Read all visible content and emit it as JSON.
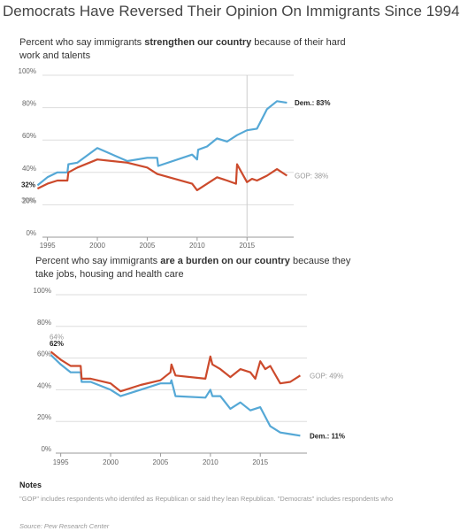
{
  "title": "Democrats Have Reversed Their Opinion On Immigrants Since 1994",
  "colors": {
    "dem": "#55a8d6",
    "gop": "#cc4a2c",
    "grid": "#dddddd",
    "axis": "#999999"
  },
  "panels": [
    {
      "subtitle_pre": "Percent who say immigrants ",
      "subtitle_bold": "strengthen our country",
      "subtitle_post": " because of their hard work and talents"
    },
    {
      "subtitle_pre": "Percent who say immigrants ",
      "subtitle_bold": "are a burden on our country",
      "subtitle_post": " because they take jobs, housing and health care"
    }
  ],
  "notes": {
    "heading": "Notes",
    "text": "\"GOP\" includes respondents who identifed as Republican or said they lean Republican. \"Democrats\" includes respondents who"
  },
  "source": "Source: Pew Research Center",
  "chart_data": [
    {
      "type": "line",
      "ylim": [
        0,
        100
      ],
      "yticks": [
        "0%",
        "20%",
        "40%",
        "60%",
        "80%",
        "100%"
      ],
      "xlim": [
        1994.5,
        2019.5
      ],
      "xticks": [
        "1995",
        "2000",
        "2005",
        "2010",
        "2015"
      ],
      "ref_line_x": 2015,
      "series": [
        {
          "key": "dem",
          "x": [
            1994,
            1995,
            1996,
            1997,
            1997.1,
            1998,
            2000,
            2003,
            2005,
            2006,
            2006.1,
            2009.5,
            2010,
            2010.1,
            2011,
            2012,
            2013,
            2014,
            2015,
            2016,
            2017,
            2018,
            2019
          ],
          "y": [
            32,
            37,
            40,
            40,
            45,
            46,
            55,
            47,
            49,
            49,
            44,
            51,
            48,
            54,
            56,
            61,
            59,
            63,
            66,
            67,
            79,
            84,
            83
          ],
          "start_label": "32%",
          "end_label_name": "Dem.: ",
          "end_label_value": "83%"
        },
        {
          "key": "gop",
          "x": [
            1994,
            1995,
            1996,
            1997,
            1997.1,
            1998,
            2000,
            2003,
            2005,
            2006,
            2009.5,
            2010,
            2012,
            2013,
            2013.9,
            2014,
            2015,
            2015.5,
            2016,
            2017,
            2018,
            2019
          ],
          "y": [
            30,
            33,
            35,
            35,
            40,
            43,
            48,
            46,
            43,
            39,
            33,
            29,
            37,
            35,
            33,
            45,
            34,
            36,
            35,
            38,
            42,
            38
          ],
          "start_label": "30%",
          "end_label": "GOP: 38%"
        }
      ]
    },
    {
      "type": "line",
      "ylim": [
        0,
        100
      ],
      "yticks": [
        "0%",
        "20%",
        "40%",
        "60%",
        "80%",
        "100%"
      ],
      "xlim": [
        1994.5,
        2019.5
      ],
      "xticks": [
        "1995",
        "2000",
        "2005",
        "2010",
        "2015"
      ],
      "series": [
        {
          "key": "dem",
          "x": [
            1994,
            1995,
            1996,
            1997,
            1997.1,
            1998,
            2000,
            2001,
            2003,
            2005,
            2006,
            2006.1,
            2006.5,
            2009.5,
            2010,
            2010.2,
            2011,
            2012,
            2013,
            2014,
            2015,
            2016,
            2017,
            2018,
            2019
          ],
          "y": [
            62,
            56,
            51,
            51,
            45,
            45,
            40,
            36,
            40,
            44,
            44,
            46,
            36,
            35,
            40,
            36,
            36,
            28,
            32,
            27,
            29,
            17,
            13,
            12,
            11
          ],
          "start_label": "62%",
          "end_label_name": "Dem.: ",
          "end_label_value": "11%"
        },
        {
          "key": "gop",
          "x": [
            1994,
            1995,
            1996,
            1997,
            1997.1,
            1998,
            2000,
            2001,
            2003,
            2005,
            2006,
            2006.1,
            2006.5,
            2009.5,
            2010,
            2010.2,
            2011,
            2012,
            2013,
            2014,
            2014.5,
            2015,
            2015.5,
            2016,
            2017,
            2018,
            2019
          ],
          "y": [
            64,
            59,
            55,
            55,
            47,
            47,
            44,
            39,
            43,
            46,
            51,
            56,
            49,
            47,
            61,
            56,
            53,
            48,
            53,
            51,
            47,
            58,
            53,
            55,
            44,
            45,
            49
          ],
          "start_label": "64%",
          "end_label": "GOP: 49%"
        }
      ]
    }
  ]
}
